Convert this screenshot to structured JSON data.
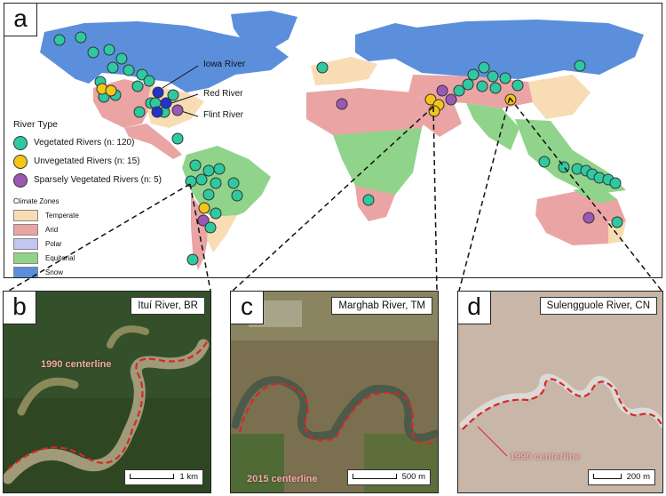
{
  "panels": {
    "a": {
      "label": "a"
    },
    "b": {
      "label": "b",
      "title": "Ituí River, BR",
      "scale": "1 km",
      "annotation": "1990 centerline"
    },
    "c": {
      "label": "c",
      "title": "Marghab River, TM",
      "scale": "500 m",
      "annotation": "2015 centerline"
    },
    "d": {
      "label": "d",
      "title": "Sulengguole River, CN",
      "scale": "200 m",
      "annotation": "1990 centerline"
    }
  },
  "callouts": {
    "iowa": "Iowa River",
    "red": "Red River",
    "flint": "Flint River"
  },
  "legend": {
    "river_type_title": "River Type",
    "river_types": [
      {
        "label": "Vegetated Rivers (n: 120)",
        "color": "#2ec9a0"
      },
      {
        "label": "Unvegetated Rivers (n: 15)",
        "color": "#f5c518"
      },
      {
        "label": "Sparsely Vegetated Rivers (n: 5)",
        "color": "#9b59b6"
      }
    ],
    "climate_title": "Climate Zones",
    "climate_zones": [
      {
        "label": "Temperate",
        "color": "#f7dcb4"
      },
      {
        "label": "Arid",
        "color": "#eaa4a4"
      },
      {
        "label": "Polar",
        "color": "#c3c6ee"
      },
      {
        "label": "Equitorial",
        "color": "#8fd48a"
      },
      {
        "label": "Snow",
        "color": "#5b8fdc"
      }
    ]
  },
  "highlight_color": "#2233cc",
  "centerline_color": "#d62828"
}
